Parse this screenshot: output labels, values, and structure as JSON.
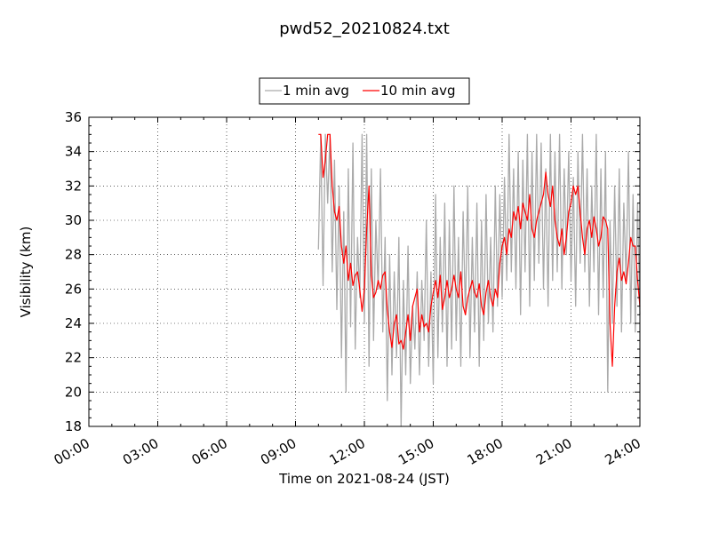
{
  "chart_data": {
    "type": "line",
    "title": "pwd52_20210824.txt",
    "xlabel": "Time on 2021-08-24 (JST)",
    "ylabel": "Visibility (km)",
    "xlim": [
      0,
      24
    ],
    "ylim": [
      18,
      36
    ],
    "x_ticks": [
      {
        "value": 0,
        "label": "00:00"
      },
      {
        "value": 3,
        "label": "03:00"
      },
      {
        "value": 6,
        "label": "06:00"
      },
      {
        "value": 9,
        "label": "09:00"
      },
      {
        "value": 12,
        "label": "12:00"
      },
      {
        "value": 15,
        "label": "15:00"
      },
      {
        "value": 18,
        "label": "18:00"
      },
      {
        "value": 21,
        "label": "21:00"
      },
      {
        "value": 24,
        "label": "24:00"
      }
    ],
    "y_ticks": [
      18,
      20,
      22,
      24,
      26,
      28,
      30,
      32,
      34,
      36
    ],
    "grid": true,
    "legend_position": "top-center",
    "series": [
      {
        "name": "1 min avg",
        "color": "#aaaaaa",
        "x": [
          10.0,
          10.1,
          10.2,
          10.3,
          10.4,
          10.5,
          10.6,
          10.7,
          10.8,
          10.9,
          11.0,
          11.1,
          11.2,
          11.3,
          11.4,
          11.5,
          11.6,
          11.7,
          11.8,
          11.9,
          12.0,
          12.1,
          12.2,
          12.3,
          12.4,
          12.5,
          12.6,
          12.7,
          12.8,
          12.9,
          13.0,
          13.1,
          13.2,
          13.3,
          13.4,
          13.5,
          13.6,
          13.7,
          13.8,
          13.9,
          14.0,
          14.1,
          14.2,
          14.3,
          14.4,
          14.5,
          14.6,
          14.7,
          14.8,
          14.9,
          15.0,
          15.1,
          15.2,
          15.3,
          15.4,
          15.5,
          15.6,
          15.7,
          15.8,
          15.9,
          16.0,
          16.1,
          16.2,
          16.3,
          16.4,
          16.5,
          16.6,
          16.7,
          16.8,
          16.9,
          17.0,
          17.1,
          17.2,
          17.3,
          17.4,
          17.5,
          17.6,
          17.7,
          17.8,
          17.9,
          18.0,
          18.1,
          18.2,
          18.3,
          18.4,
          18.5,
          18.6,
          18.7,
          18.8,
          18.9,
          19.0,
          19.1,
          19.2,
          19.3,
          19.4,
          19.5,
          19.6,
          19.7,
          19.8,
          19.9,
          20.0,
          20.1,
          20.2,
          20.3,
          20.4,
          20.5,
          20.6,
          20.7,
          20.8,
          20.9,
          21.0,
          21.1,
          21.2,
          21.3,
          21.4,
          21.5,
          21.6,
          21.7,
          21.8,
          21.9,
          22.0,
          22.1,
          22.2,
          22.3,
          22.4,
          22.5,
          22.6,
          22.7,
          22.8,
          22.9,
          23.0,
          23.1,
          23.2,
          23.3,
          23.4,
          23.5,
          23.6,
          23.7,
          23.8,
          23.9,
          24.0
        ],
        "values": [
          28.3,
          35.0,
          26.2,
          35.0,
          31.0,
          35.0,
          27.0,
          33.5,
          24.8,
          32.0,
          22.0,
          30.5,
          20.0,
          33.0,
          23.8,
          34.5,
          22.5,
          29.0,
          25.5,
          35.0,
          24.0,
          35.0,
          21.5,
          33.0,
          23.0,
          30.0,
          26.0,
          33.0,
          23.5,
          29.0,
          19.5,
          28.0,
          21.0,
          27.0,
          22.0,
          29.0,
          18.0,
          26.5,
          21.0,
          28.5,
          20.5,
          25.0,
          22.5,
          27.0,
          21.0,
          26.5,
          23.0,
          30.0,
          21.5,
          27.0,
          20.5,
          31.5,
          22.0,
          29.0,
          23.5,
          31.0,
          21.5,
          30.0,
          22.5,
          32.0,
          23.0,
          29.0,
          21.5,
          30.5,
          24.5,
          32.0,
          22.0,
          29.0,
          23.5,
          31.0,
          21.5,
          30.0,
          23.0,
          31.5,
          24.0,
          29.0,
          23.5,
          32.0,
          25.0,
          31.5,
          25.5,
          32.5,
          26.5,
          35.0,
          27.0,
          33.0,
          26.0,
          34.0,
          24.5,
          33.5,
          27.0,
          35.0,
          25.0,
          34.0,
          26.5,
          35.0,
          27.5,
          34.5,
          26.0,
          33.0,
          25.0,
          35.0,
          26.5,
          34.0,
          27.0,
          35.0,
          26.0,
          33.0,
          28.0,
          34.0,
          26.5,
          32.5,
          25.0,
          34.0,
          27.5,
          35.0,
          27.0,
          33.0,
          25.0,
          32.0,
          27.0,
          35.0,
          24.5,
          33.0,
          25.5,
          34.0,
          20.0,
          30.0,
          24.0,
          32.0,
          25.0,
          33.0,
          23.5,
          31.0,
          26.5,
          34.0,
          24.0,
          31.5,
          23.5,
          31.0,
          24.5
        ]
      },
      {
        "name": "10 min avg",
        "color": "#ff0000",
        "x": [
          10.0,
          10.1,
          10.2,
          10.3,
          10.4,
          10.5,
          10.6,
          10.7,
          10.8,
          10.9,
          11.0,
          11.1,
          11.2,
          11.3,
          11.4,
          11.5,
          11.6,
          11.7,
          11.8,
          11.9,
          12.0,
          12.1,
          12.2,
          12.3,
          12.4,
          12.5,
          12.6,
          12.7,
          12.8,
          12.9,
          13.0,
          13.1,
          13.2,
          13.3,
          13.4,
          13.5,
          13.6,
          13.7,
          13.8,
          13.9,
          14.0,
          14.1,
          14.2,
          14.3,
          14.4,
          14.5,
          14.6,
          14.7,
          14.8,
          14.9,
          15.0,
          15.1,
          15.2,
          15.3,
          15.4,
          15.5,
          15.6,
          15.7,
          15.8,
          15.9,
          16.0,
          16.1,
          16.2,
          16.3,
          16.4,
          16.5,
          16.6,
          16.7,
          16.8,
          16.9,
          17.0,
          17.1,
          17.2,
          17.3,
          17.4,
          17.5,
          17.6,
          17.7,
          17.8,
          17.9,
          18.0,
          18.1,
          18.2,
          18.3,
          18.4,
          18.5,
          18.6,
          18.7,
          18.8,
          18.9,
          19.0,
          19.1,
          19.2,
          19.3,
          19.4,
          19.5,
          19.6,
          19.7,
          19.8,
          19.9,
          20.0,
          20.1,
          20.2,
          20.3,
          20.4,
          20.5,
          20.6,
          20.7,
          20.8,
          20.9,
          21.0,
          21.1,
          21.2,
          21.3,
          21.4,
          21.5,
          21.6,
          21.7,
          21.8,
          21.9,
          22.0,
          22.1,
          22.2,
          22.3,
          22.4,
          22.5,
          22.6,
          22.7,
          22.8,
          22.9,
          23.0,
          23.1,
          23.2,
          23.3,
          23.4,
          23.5,
          23.6,
          23.7,
          23.8,
          23.9,
          24.0
        ],
        "values": [
          35.0,
          35.0,
          32.5,
          33.5,
          35.0,
          35.0,
          32.0,
          30.5,
          30.0,
          30.8,
          28.5,
          27.5,
          28.5,
          26.5,
          27.5,
          26.2,
          26.8,
          27.0,
          26.0,
          24.7,
          26.0,
          29.5,
          32.0,
          26.8,
          25.5,
          25.8,
          26.5,
          26.0,
          26.8,
          27.0,
          24.8,
          23.5,
          22.6,
          24.0,
          24.5,
          22.8,
          23.0,
          22.5,
          23.5,
          24.5,
          23.0,
          25.0,
          25.5,
          26.0,
          23.5,
          24.5,
          23.8,
          24.0,
          23.5,
          25.0,
          25.8,
          26.5,
          25.5,
          26.8,
          24.8,
          25.5,
          26.5,
          25.5,
          26.0,
          26.8,
          26.0,
          25.5,
          27.0,
          25.0,
          24.5,
          25.5,
          26.0,
          26.5,
          25.8,
          25.5,
          26.3,
          25.0,
          24.5,
          25.8,
          26.5,
          25.5,
          25.0,
          26.0,
          25.5,
          27.5,
          28.5,
          29.0,
          28.0,
          29.5,
          29.0,
          30.5,
          30.0,
          30.8,
          29.5,
          31.0,
          30.5,
          30.0,
          31.5,
          29.5,
          29.0,
          30.0,
          30.5,
          31.0,
          31.5,
          32.8,
          31.5,
          30.8,
          32.0,
          30.0,
          29.0,
          28.5,
          29.5,
          28.0,
          29.0,
          30.5,
          31.0,
          32.0,
          31.5,
          32.0,
          30.5,
          29.0,
          28.0,
          29.5,
          30.0,
          29.0,
          30.2,
          29.5,
          28.5,
          29.0,
          30.2,
          30.0,
          29.5,
          24.0,
          21.5,
          25.0,
          27.0,
          27.8,
          26.5,
          27.0,
          26.3,
          27.5,
          29.0,
          28.5,
          28.5,
          26.5,
          25.0
        ]
      }
    ]
  }
}
